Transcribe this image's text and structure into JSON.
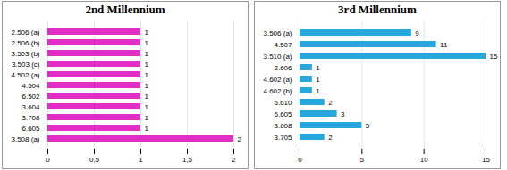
{
  "chart_data": [
    {
      "type": "bar",
      "orientation": "horizontal",
      "title": "2nd Millennium",
      "categories": [
        "2.506 (a)",
        "2.506 (b)",
        "3.503 (b)",
        "3.503 (c)",
        "4.502 (a)",
        "4.504",
        "6.502",
        "3.604",
        "3.708",
        "6.605",
        "3.508 (a)"
      ],
      "values": [
        1,
        1,
        1,
        1,
        1,
        1,
        1,
        1,
        1,
        1,
        2
      ],
      "color": "#e02ec6",
      "xlim": [
        0,
        2
      ],
      "xticks": [
        0,
        {
          "value": 0.5,
          "label": "0,5"
        },
        1,
        {
          "value": 1.5,
          "label": "1,5"
        },
        2
      ],
      "grid": true,
      "data_labels": true
    },
    {
      "type": "bar",
      "orientation": "horizontal",
      "title": "3rd Millennium",
      "categories": [
        "3.506 (a)",
        "4.507",
        "3.510 (a)",
        "2.606",
        "4.602 (a)",
        "4.602 (b)",
        "5.610",
        "6.605",
        "3.608",
        "3.705"
      ],
      "values": [
        9,
        11,
        15,
        1,
        1,
        1,
        2,
        3,
        5,
        2
      ],
      "color": "#27a8dc",
      "xlim": [
        0,
        15
      ],
      "xticks": [
        0,
        5,
        10,
        15
      ],
      "grid": true,
      "data_labels": true
    }
  ]
}
